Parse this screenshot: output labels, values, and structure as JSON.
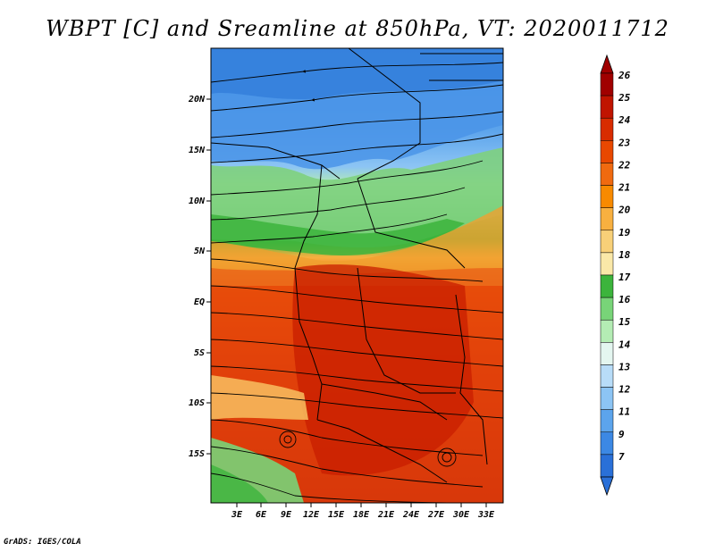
{
  "title": "WBPT [C] and Sreamline at 850hPa, VT: 2020011712",
  "credit": "GrADS: IGES/COLA",
  "map": {
    "lat_labels": [
      "20N",
      "15N",
      "10N",
      "5N",
      "EQ",
      "5S",
      "10S",
      "15S"
    ],
    "lon_labels": [
      "3E",
      "6E",
      "9E",
      "12E",
      "15E",
      "18E",
      "21E",
      "24E",
      "27E",
      "30E",
      "33E"
    ]
  },
  "colorbar": {
    "labels": [
      "26",
      "25",
      "24",
      "23",
      "22",
      "21",
      "20",
      "19",
      "18",
      "17",
      "16",
      "15",
      "14",
      "13",
      "12",
      "11",
      "9",
      "7"
    ],
    "colors": [
      "#a00000",
      "#c01400",
      "#d82c00",
      "#e84800",
      "#f06a10",
      "#f88a00",
      "#f8b040",
      "#f8d078",
      "#fae8a8",
      "#3cb43c",
      "#78d478",
      "#b4ecb4",
      "#e4f6f0",
      "#b8dcf8",
      "#8cc4f4",
      "#5ca4ec",
      "#3c88e4",
      "#2a70d8"
    ]
  }
}
